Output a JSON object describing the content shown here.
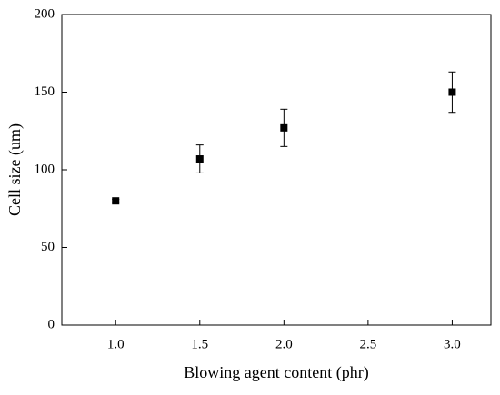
{
  "chart_data": {
    "type": "scatter",
    "xlabel": "Blowing agent content (phr)",
    "ylabel": "Cell size (um)",
    "x": [
      1.0,
      1.5,
      2.0,
      3.0
    ],
    "values": [
      80,
      107,
      127,
      150
    ],
    "errors": [
      1,
      9,
      12,
      13
    ],
    "color": "#000000",
    "xlim": [
      0.68,
      3.23
    ],
    "ylim": [
      0,
      200
    ],
    "xticks": [
      {
        "value": 1,
        "label": "1.0"
      },
      {
        "value": 1.5,
        "label": "1.5"
      },
      {
        "value": 2,
        "label": "2.0"
      },
      {
        "value": 2.5,
        "label": "2.5"
      },
      {
        "value": 3,
        "label": "3.0"
      }
    ],
    "yticks": [
      0,
      50,
      100,
      150,
      200
    ]
  }
}
